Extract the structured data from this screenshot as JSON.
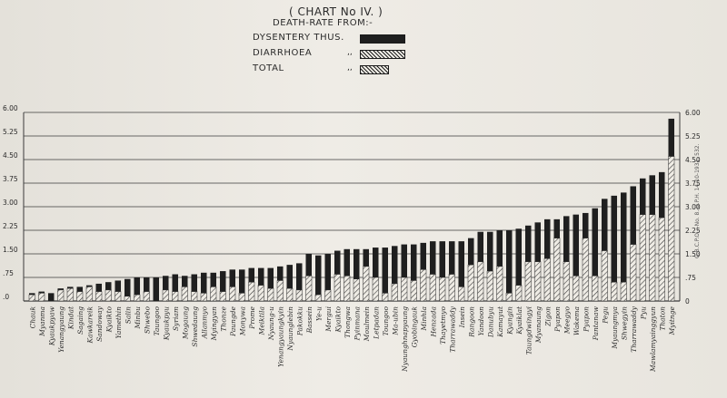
{
  "chart_data": {
    "type": "bar",
    "title": "( CHART No IV. )",
    "subtitle": "DEATH-RATE FROM:-",
    "legend": [
      {
        "label": "DYSENTERY THUS.",
        "ditto": "",
        "pattern": "solid"
      },
      {
        "label": "DIARRHOEA",
        "ditto": ",,",
        "pattern": "hatch"
      },
      {
        "label": "TOTAL",
        "ditto": ",,",
        "pattern": "hatch-boxed"
      }
    ],
    "y_ticks_left": [
      "6.00",
      "5.25",
      "4.50",
      "3.75",
      "3.00",
      "2.25",
      "1.50",
      ".75",
      ".0"
    ],
    "y_ticks_right": [
      "6.00",
      "5.25",
      "4.50",
      "3.75",
      "3.00",
      "2.25",
      "1.50",
      ".75",
      "0"
    ],
    "ylim": [
      0,
      6.0
    ],
    "grid": true,
    "legend_position": "top-center",
    "categories": [
      "Chauk",
      "Myanma",
      "Kyaukpyaw",
      "Yenangyaung",
      "Kindat",
      "Sagaing",
      "Kawkareik",
      "Sandoway",
      "Kyaikto",
      "Yamethin",
      "Salin",
      "Minbu",
      "Shwebo",
      "Taungoo",
      "Kyaukpyu",
      "Syriam",
      "Mogaung",
      "Shwedaung",
      "Allanmyo",
      "Myingyan",
      "Thonze",
      "Paungde",
      "Monywa",
      "Prome",
      "Meiktila",
      "Nyaung-u",
      "Yenangyaungkyin",
      "Nyaunglebin",
      "Pakokku",
      "Bassein",
      "Ye-u",
      "Mergui",
      "Kyaikto",
      "Thongwa",
      "Pyinmana",
      "Moulmein",
      "Letpadan",
      "Toungoo",
      "Ma-ubin",
      "Nyaunghnapyaung",
      "Gyobingauk",
      "Minhla",
      "Henzada",
      "Thayetmyo",
      "Tharrawaddy",
      "Insein",
      "Rangoon",
      "Yandoon",
      "Danubyu",
      "Kamayut",
      "Kyangin",
      "Kyaiklat",
      "Taungdwingyi",
      "Myanaung",
      "Zigon",
      "Pyapon",
      "Meegyo",
      "Wakema",
      "Pyapon",
      "Pantanaw",
      "Pegu",
      "Myaungmya",
      "Shwegyin",
      "Tharrawaddy",
      "Pyu",
      "Mawlamyainggyun",
      "Thaton",
      "Myitnge"
    ],
    "series": [
      {
        "name": "DYSENTERY THUS.",
        "values": [
          0.05,
          0.05,
          0.25,
          0.05,
          0.05,
          0.15,
          0.05,
          0.25,
          0.25,
          0.35,
          0.55,
          0.55,
          0.45,
          0.75,
          0.45,
          0.55,
          0.35,
          0.55,
          0.65,
          0.45,
          0.65,
          0.55,
          0.75,
          0.45,
          0.55,
          0.65,
          0.45,
          0.75,
          0.85,
          0.7,
          1.25,
          1.15,
          0.75,
          0.85,
          0.95,
          0.55,
          0.95,
          1.45,
          1.2,
          1.05,
          1.15,
          0.85,
          1.05,
          1.15,
          1.05,
          1.45,
          0.85,
          0.95,
          1.25,
          1.15,
          2.0,
          1.8,
          1.15,
          1.25,
          1.25,
          0.6,
          1.45,
          1.95,
          0.8,
          2.15,
          1.65,
          2.75,
          2.85,
          1.85,
          1.15,
          1.25,
          1.45,
          1.2
        ]
      },
      {
        "name": "DIARRHOEA",
        "values": [
          0.2,
          0.25,
          0.0,
          0.35,
          0.4,
          0.3,
          0.45,
          0.3,
          0.35,
          0.3,
          0.15,
          0.2,
          0.3,
          0.0,
          0.35,
          0.3,
          0.45,
          0.3,
          0.25,
          0.45,
          0.3,
          0.45,
          0.25,
          0.6,
          0.5,
          0.4,
          0.65,
          0.4,
          0.35,
          0.8,
          0.2,
          0.35,
          0.85,
          0.8,
          0.7,
          1.1,
          0.75,
          0.25,
          0.55,
          0.75,
          0.65,
          1.0,
          0.85,
          0.75,
          0.85,
          0.45,
          1.15,
          1.25,
          0.95,
          1.1,
          0.25,
          0.5,
          1.25,
          1.25,
          1.35,
          2.0,
          1.25,
          0.8,
          2.0,
          0.8,
          1.6,
          0.6,
          0.6,
          1.8,
          2.75,
          2.75,
          2.65,
          4.6
        ]
      }
    ]
  },
  "footer_stamp": "G.B.C.P.O.—No. 8. D.P.H. 14-10-1931. 532."
}
